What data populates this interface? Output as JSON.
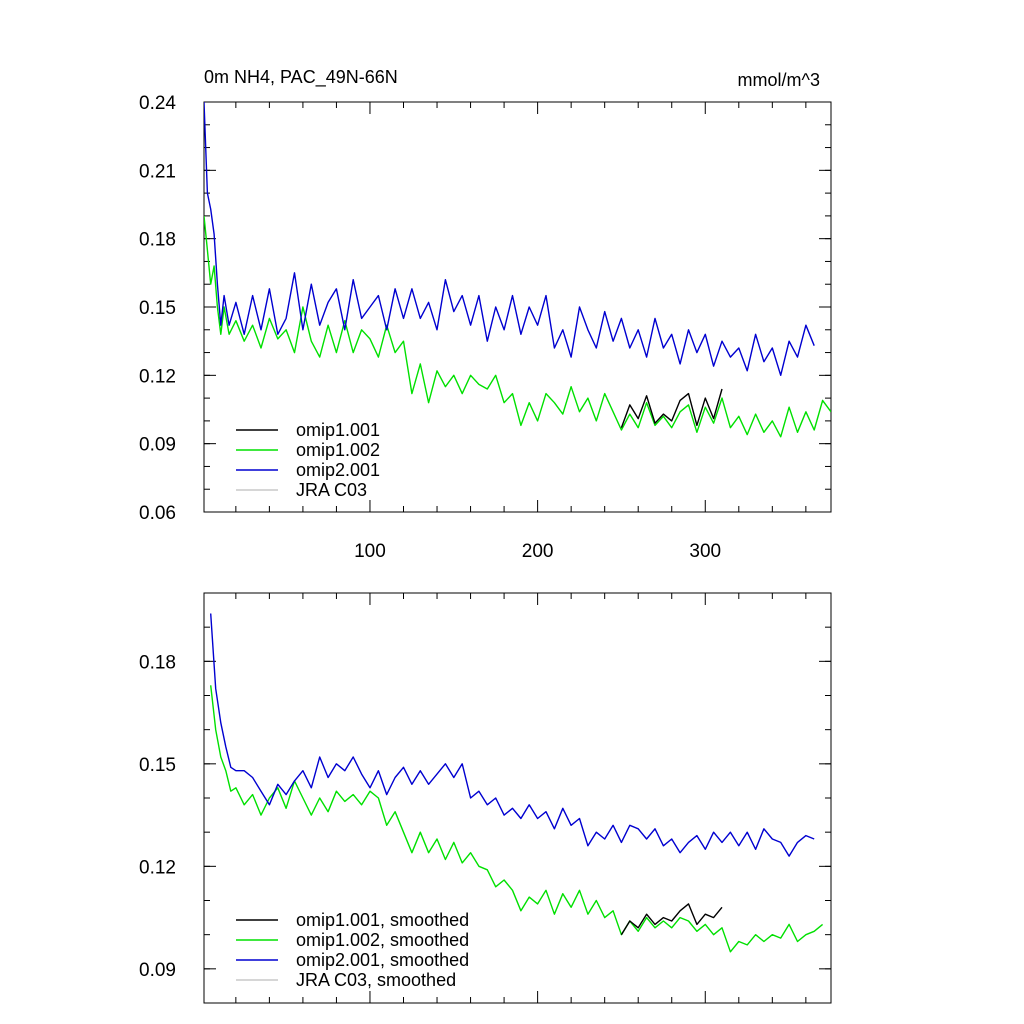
{
  "chart_data": [
    {
      "type": "line",
      "title": "0m NH4, PAC_49N-66N",
      "units": "mmol/m^3",
      "xlim": [
        1,
        375
      ],
      "ylim": [
        0.06,
        0.24
      ],
      "xticks": [
        100,
        200,
        300
      ],
      "yticks": [
        0.06,
        0.09,
        0.12,
        0.15,
        0.18,
        0.21,
        0.24
      ],
      "ytick_labels": [
        "0.06",
        "0.09",
        "0.12",
        "0.15",
        "0.18",
        "0.21",
        "0.24"
      ],
      "legend_position": "bottom-left",
      "series": [
        {
          "name": "omip1.001",
          "color": "#000000",
          "x": [
            250,
            255,
            260,
            265,
            270,
            275,
            280,
            285,
            290,
            295,
            300,
            305,
            310
          ],
          "y": [
            0.097,
            0.107,
            0.101,
            0.111,
            0.099,
            0.103,
            0.1,
            0.109,
            0.112,
            0.098,
            0.11,
            0.101,
            0.114
          ]
        },
        {
          "name": "omip1.002",
          "color": "#00e000",
          "x": [
            1,
            3,
            5,
            7,
            9,
            11,
            13,
            16,
            20,
            25,
            30,
            35,
            40,
            45,
            50,
            55,
            60,
            65,
            70,
            75,
            80,
            85,
            90,
            95,
            100,
            105,
            110,
            115,
            120,
            125,
            130,
            135,
            140,
            145,
            150,
            155,
            160,
            165,
            170,
            175,
            180,
            185,
            190,
            195,
            200,
            205,
            210,
            215,
            220,
            225,
            230,
            235,
            240,
            245,
            250,
            255,
            260,
            265,
            270,
            275,
            280,
            285,
            290,
            295,
            300,
            305,
            310,
            315,
            320,
            325,
            330,
            335,
            340,
            345,
            350,
            355,
            360,
            365,
            370,
            375
          ],
          "y": [
            0.19,
            0.175,
            0.16,
            0.168,
            0.15,
            0.138,
            0.15,
            0.138,
            0.144,
            0.135,
            0.142,
            0.132,
            0.145,
            0.136,
            0.14,
            0.13,
            0.15,
            0.135,
            0.128,
            0.142,
            0.13,
            0.144,
            0.13,
            0.14,
            0.136,
            0.128,
            0.142,
            0.13,
            0.135,
            0.112,
            0.125,
            0.108,
            0.122,
            0.115,
            0.12,
            0.112,
            0.12,
            0.116,
            0.114,
            0.12,
            0.108,
            0.112,
            0.098,
            0.108,
            0.1,
            0.112,
            0.108,
            0.103,
            0.115,
            0.104,
            0.11,
            0.1,
            0.112,
            0.104,
            0.096,
            0.103,
            0.097,
            0.108,
            0.098,
            0.102,
            0.097,
            0.104,
            0.107,
            0.095,
            0.106,
            0.099,
            0.11,
            0.097,
            0.102,
            0.094,
            0.103,
            0.095,
            0.1,
            0.093,
            0.106,
            0.095,
            0.104,
            0.096,
            0.109,
            0.104
          ]
        },
        {
          "name": "omip2.001",
          "color": "#0000d0",
          "x": [
            1,
            3,
            5,
            7,
            9,
            11,
            13,
            16,
            20,
            25,
            30,
            35,
            40,
            45,
            50,
            55,
            60,
            65,
            70,
            75,
            80,
            85,
            90,
            95,
            100,
            105,
            110,
            115,
            120,
            125,
            130,
            135,
            140,
            145,
            150,
            155,
            160,
            165,
            170,
            175,
            180,
            185,
            190,
            195,
            200,
            205,
            210,
            215,
            220,
            225,
            230,
            235,
            240,
            245,
            250,
            255,
            260,
            265,
            270,
            275,
            280,
            285,
            290,
            295,
            300,
            305,
            310,
            315,
            320,
            325,
            330,
            335,
            340,
            345,
            350,
            355,
            360,
            365
          ],
          "y": [
            0.24,
            0.2,
            0.193,
            0.182,
            0.16,
            0.142,
            0.155,
            0.142,
            0.152,
            0.138,
            0.155,
            0.14,
            0.158,
            0.138,
            0.145,
            0.165,
            0.14,
            0.16,
            0.142,
            0.152,
            0.158,
            0.14,
            0.162,
            0.145,
            0.15,
            0.155,
            0.14,
            0.158,
            0.145,
            0.158,
            0.145,
            0.152,
            0.14,
            0.162,
            0.148,
            0.155,
            0.142,
            0.155,
            0.135,
            0.15,
            0.14,
            0.155,
            0.138,
            0.15,
            0.142,
            0.155,
            0.132,
            0.14,
            0.128,
            0.15,
            0.14,
            0.132,
            0.148,
            0.135,
            0.145,
            0.132,
            0.14,
            0.128,
            0.145,
            0.132,
            0.138,
            0.125,
            0.14,
            0.13,
            0.138,
            0.124,
            0.135,
            0.128,
            0.132,
            0.122,
            0.138,
            0.126,
            0.132,
            0.12,
            0.135,
            0.128,
            0.142,
            0.133
          ]
        },
        {
          "name": "JRA C03",
          "color": "#c8c8c8",
          "x": [],
          "y": []
        }
      ]
    },
    {
      "type": "line",
      "title": "",
      "xlim": [
        1,
        375
      ],
      "ylim": [
        0.08,
        0.2
      ],
      "xticks": [
        100,
        200,
        300
      ],
      "yticks": [
        0.09,
        0.12,
        0.15,
        0.18
      ],
      "ytick_labels": [
        "0.09",
        "0.12",
        "0.15",
        "0.18"
      ],
      "legend_position": "bottom-left",
      "series": [
        {
          "name": "omip1.001, smoothed",
          "color": "#000000",
          "x": [
            250,
            255,
            260,
            265,
            270,
            275,
            280,
            285,
            290,
            295,
            300,
            305,
            310
          ],
          "y": [
            0.1,
            0.104,
            0.102,
            0.106,
            0.103,
            0.105,
            0.104,
            0.107,
            0.109,
            0.103,
            0.106,
            0.105,
            0.108
          ]
        },
        {
          "name": "omip1.002, smoothed",
          "color": "#00e000",
          "x": [
            5,
            8,
            11,
            14,
            17,
            20,
            25,
            30,
            35,
            40,
            45,
            50,
            55,
            60,
            65,
            70,
            75,
            80,
            85,
            90,
            95,
            100,
            105,
            110,
            115,
            120,
            125,
            130,
            135,
            140,
            145,
            150,
            155,
            160,
            165,
            170,
            175,
            180,
            185,
            190,
            195,
            200,
            205,
            210,
            215,
            220,
            225,
            230,
            235,
            240,
            245,
            250,
            255,
            260,
            265,
            270,
            275,
            280,
            285,
            290,
            295,
            300,
            305,
            310,
            315,
            320,
            325,
            330,
            335,
            340,
            345,
            350,
            355,
            360,
            365,
            370
          ],
          "y": [
            0.173,
            0.16,
            0.152,
            0.148,
            0.142,
            0.143,
            0.138,
            0.141,
            0.135,
            0.14,
            0.143,
            0.137,
            0.145,
            0.14,
            0.135,
            0.14,
            0.136,
            0.142,
            0.139,
            0.141,
            0.138,
            0.142,
            0.14,
            0.132,
            0.136,
            0.13,
            0.124,
            0.13,
            0.124,
            0.128,
            0.122,
            0.127,
            0.121,
            0.124,
            0.12,
            0.119,
            0.114,
            0.116,
            0.113,
            0.107,
            0.111,
            0.109,
            0.113,
            0.106,
            0.112,
            0.108,
            0.113,
            0.106,
            0.11,
            0.105,
            0.107,
            0.1,
            0.104,
            0.101,
            0.105,
            0.102,
            0.104,
            0.102,
            0.105,
            0.104,
            0.101,
            0.103,
            0.1,
            0.102,
            0.095,
            0.098,
            0.097,
            0.1,
            0.098,
            0.1,
            0.099,
            0.103,
            0.098,
            0.1,
            0.101,
            0.103
          ]
        },
        {
          "name": "omip2.001, smoothed",
          "color": "#0000d0",
          "x": [
            5,
            8,
            11,
            14,
            17,
            20,
            25,
            30,
            35,
            40,
            45,
            50,
            55,
            60,
            65,
            70,
            75,
            80,
            85,
            90,
            95,
            100,
            105,
            110,
            115,
            120,
            125,
            130,
            135,
            140,
            145,
            150,
            155,
            160,
            165,
            170,
            175,
            180,
            185,
            190,
            195,
            200,
            205,
            210,
            215,
            220,
            225,
            230,
            235,
            240,
            245,
            250,
            255,
            260,
            265,
            270,
            275,
            280,
            285,
            290,
            295,
            300,
            305,
            310,
            315,
            320,
            325,
            330,
            335,
            340,
            345,
            350,
            355,
            360,
            365
          ],
          "y": [
            0.194,
            0.172,
            0.162,
            0.155,
            0.149,
            0.148,
            0.148,
            0.146,
            0.142,
            0.138,
            0.144,
            0.141,
            0.145,
            0.148,
            0.143,
            0.152,
            0.146,
            0.15,
            0.148,
            0.152,
            0.147,
            0.143,
            0.148,
            0.141,
            0.146,
            0.149,
            0.144,
            0.148,
            0.144,
            0.147,
            0.15,
            0.146,
            0.15,
            0.14,
            0.142,
            0.138,
            0.14,
            0.135,
            0.137,
            0.134,
            0.138,
            0.134,
            0.136,
            0.131,
            0.137,
            0.132,
            0.134,
            0.126,
            0.13,
            0.128,
            0.132,
            0.127,
            0.132,
            0.131,
            0.128,
            0.131,
            0.126,
            0.128,
            0.124,
            0.127,
            0.129,
            0.125,
            0.13,
            0.127,
            0.13,
            0.126,
            0.13,
            0.125,
            0.131,
            0.128,
            0.127,
            0.123,
            0.127,
            0.129,
            0.128
          ]
        },
        {
          "name": "JRA C03, smoothed",
          "color": "#c8c8c8",
          "x": [],
          "y": []
        }
      ]
    }
  ]
}
